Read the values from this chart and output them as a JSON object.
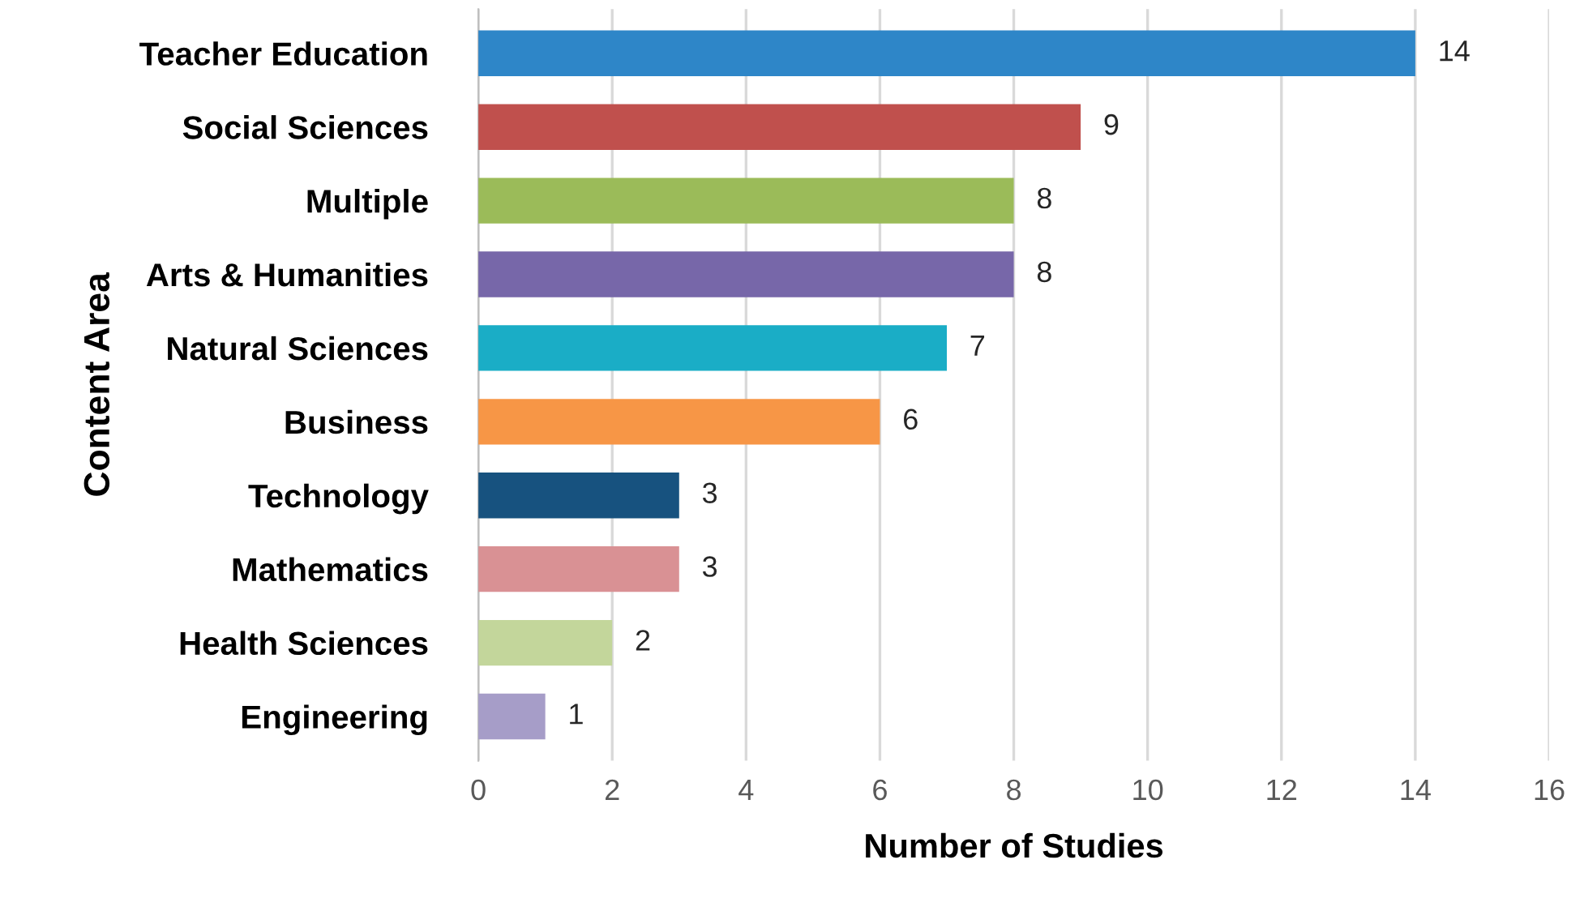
{
  "chart_data": {
    "type": "bar",
    "orientation": "horizontal",
    "xlabel": "Number of Studies",
    "ylabel": "Content Area",
    "categories": [
      "Teacher Education",
      "Social Sciences",
      "Multiple",
      "Arts & Humanities",
      "Natural Sciences",
      "Business",
      "Technology",
      "Mathematics",
      "Health Sciences",
      "Engineering"
    ],
    "values": [
      14,
      9,
      8,
      8,
      7,
      6,
      3,
      3,
      2,
      1
    ],
    "colors": [
      "#2e86c8",
      "#c0504d",
      "#9bbb59",
      "#7767a9",
      "#1aadc6",
      "#f79646",
      "#17527f",
      "#d99194",
      "#c3d69b",
      "#a69dc8"
    ],
    "xlim": [
      0,
      16
    ],
    "xticks": [
      0,
      2,
      4,
      6,
      8,
      10,
      12,
      14,
      16
    ],
    "grid": "x",
    "data_labels": true
  }
}
